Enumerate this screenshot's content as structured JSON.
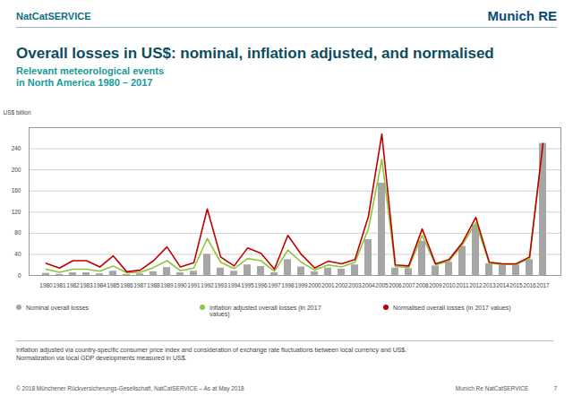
{
  "page": {
    "header": "NatCatSERVICE",
    "logo": "Munich RE",
    "notes": [
      "Inflation adjusted via country-specific consumer price index and consideration of exchange rate fluctuations between local currency and US$.",
      "Normalization via local GDP developments measured in US$."
    ],
    "footer": {
      "left": "© 2018 Münchener Rückversicherungs-Gesellschaft, NatCatSERVICE – As at May 2018",
      "right": "Munich Re NatCatSERVICE",
      "page": 7
    }
  },
  "chart_data": {
    "type": "bar",
    "title": "Overall losses in US$: nominal, inflation adjusted, and normalised",
    "subtitle": [
      "Relevant meteorological events",
      "in North America 1980 – 2017"
    ],
    "y_label": "US$ billion",
    "categories": [
      "1980",
      "1981",
      "1982",
      "1983",
      "1984",
      "1985",
      "1986",
      "1987",
      "1988",
      "1989",
      "1990",
      "1991",
      "1992",
      "1993",
      "1994",
      "1995",
      "1996",
      "1997",
      "1998",
      "1999",
      "2000",
      "2001",
      "2002",
      "2003",
      "2004",
      "2005",
      "2006",
      "2007",
      "2008",
      "2009",
      "2010",
      "2011",
      "2012",
      "2013",
      "2014",
      "2015",
      "2016",
      "2017"
    ],
    "series": [
      {
        "name": "Nominal overall losses",
        "type": "bar",
        "color": "#a6a6a6",
        "values": [
          4,
          2,
          5,
          5,
          3,
          8,
          2,
          3,
          7,
          15,
          5,
          8,
          40,
          14,
          8,
          20,
          17,
          5,
          30,
          16,
          7,
          14,
          12,
          20,
          68,
          175,
          14,
          13,
          65,
          18,
          25,
          55,
          95,
          22,
          20,
          20,
          30,
          250
        ]
      },
      {
        "name": "Inflation adjusted overall losses (in 2017 values)",
        "type": "line",
        "color": "#8cc63f",
        "values": [
          12,
          6,
          12,
          12,
          8,
          18,
          5,
          6,
          15,
          28,
          9,
          14,
          70,
          25,
          13,
          32,
          28,
          8,
          48,
          25,
          10,
          20,
          16,
          25,
          88,
          220,
          17,
          15,
          76,
          20,
          27,
          58,
          100,
          23,
          21,
          21,
          32,
          250
        ]
      },
      {
        "name": "Normalised overall losses (in 2017 values)",
        "type": "line",
        "color": "#c00000",
        "values": [
          23,
          14,
          28,
          28,
          16,
          37,
          7,
          10,
          28,
          54,
          16,
          24,
          126,
          35,
          18,
          52,
          42,
          12,
          76,
          40,
          14,
          27,
          22,
          30,
          112,
          268,
          20,
          18,
          88,
          22,
          30,
          62,
          110,
          25,
          22,
          22,
          35,
          250
        ]
      }
    ],
    "ylim": [
      0,
      280
    ],
    "yticks": [
      0,
      40,
      80,
      120,
      160,
      200,
      240
    ],
    "grid": true,
    "legend": "bottom"
  }
}
